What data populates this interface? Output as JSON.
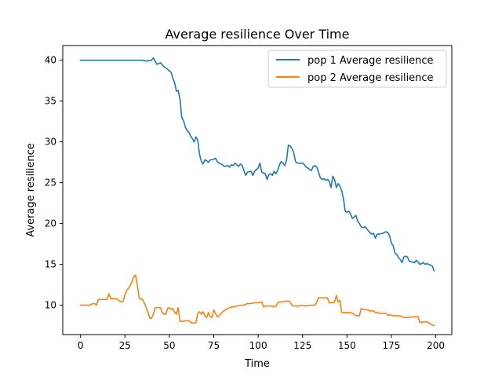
{
  "chart_data": {
    "type": "line",
    "title": "Average resilience Over Time",
    "xlabel": "Time",
    "ylabel": "Average resilience",
    "xlim": [
      -10,
      209
    ],
    "ylim": [
      6.4,
      41.8
    ],
    "xticks": [
      0,
      25,
      50,
      75,
      100,
      125,
      150,
      175,
      200
    ],
    "yticks": [
      10,
      15,
      20,
      25,
      30,
      35,
      40
    ],
    "grid": false,
    "legend_position": "top-right",
    "colors": {
      "pop1": "#1f77b4",
      "pop2": "#ff7f0e"
    },
    "series": [
      {
        "name": "pop 1 Average resilience",
        "points": [
          [
            0,
            40
          ],
          [
            35,
            40
          ],
          [
            37,
            39.9
          ],
          [
            40,
            40
          ],
          [
            41,
            40.3
          ],
          [
            43,
            39.5
          ],
          [
            45,
            39.7
          ],
          [
            47,
            39.2
          ],
          [
            49,
            38.9
          ],
          [
            51,
            38.5
          ],
          [
            52,
            37.8
          ],
          [
            53,
            37.2
          ],
          [
            54,
            36.2
          ],
          [
            55,
            36.3
          ],
          [
            56,
            35.2
          ],
          [
            57,
            33
          ],
          [
            58,
            32.6
          ],
          [
            59,
            31.8
          ],
          [
            60,
            31.4
          ],
          [
            61,
            31.2
          ],
          [
            62,
            30.7
          ],
          [
            63,
            30.4
          ],
          [
            64,
            30
          ],
          [
            65,
            30.6
          ],
          [
            66,
            30.2
          ],
          [
            67,
            28.5
          ],
          [
            68,
            27.6
          ],
          [
            69,
            27.3
          ],
          [
            70,
            27.8
          ],
          [
            71,
            27.7
          ],
          [
            72,
            27.5
          ],
          [
            73,
            27.8
          ],
          [
            74,
            27.8
          ],
          [
            75,
            27.9
          ],
          [
            76,
            28
          ],
          [
            77,
            27.6
          ],
          [
            78,
            27.4
          ],
          [
            80,
            27.2
          ],
          [
            81,
            27
          ],
          [
            83,
            27.1
          ],
          [
            84,
            26.9
          ],
          [
            85,
            27.2
          ],
          [
            86,
            27.1
          ],
          [
            87,
            27.4
          ],
          [
            88,
            27.2
          ],
          [
            89,
            27
          ],
          [
            90,
            27.3
          ],
          [
            91,
            27.1
          ],
          [
            92,
            26.5
          ],
          [
            93,
            25.9
          ],
          [
            94,
            26.3
          ],
          [
            96,
            26.4
          ],
          [
            97,
            25.9
          ],
          [
            98,
            26.4
          ],
          [
            99,
            26.6
          ],
          [
            100,
            26.8
          ],
          [
            101,
            27.4
          ],
          [
            102,
            26.3
          ],
          [
            103,
            26.2
          ],
          [
            104,
            26.1
          ],
          [
            105,
            25.4
          ],
          [
            106,
            26
          ],
          [
            107,
            26.1
          ],
          [
            108,
            25.9
          ],
          [
            109,
            26.4
          ],
          [
            110,
            26.1
          ],
          [
            111,
            26.5
          ],
          [
            112,
            27.2
          ],
          [
            113,
            27.6
          ],
          [
            114,
            27.4
          ],
          [
            115,
            27.1
          ],
          [
            116,
            27.8
          ],
          [
            117,
            29.6
          ],
          [
            118,
            29.5
          ],
          [
            119,
            29.2
          ],
          [
            120,
            28.7
          ],
          [
            121,
            27.6
          ],
          [
            122,
            27.4
          ],
          [
            125,
            27.4
          ],
          [
            126,
            27.2
          ],
          [
            127,
            26.9
          ],
          [
            128,
            26.8
          ],
          [
            129,
            26.6
          ],
          [
            130,
            26.5
          ],
          [
            131,
            27
          ],
          [
            132,
            27.1
          ],
          [
            133,
            26.9
          ],
          [
            134,
            26.3
          ],
          [
            135,
            25.6
          ],
          [
            136,
            25.4
          ],
          [
            137,
            25.5
          ],
          [
            138,
            25.3
          ],
          [
            139,
            25.4
          ],
          [
            140,
            25.2
          ],
          [
            141,
            24.4
          ],
          [
            142,
            25.8
          ],
          [
            143,
            25.4
          ],
          [
            144,
            24.4
          ],
          [
            145,
            24.9
          ],
          [
            146,
            24.6
          ],
          [
            147,
            24
          ],
          [
            148,
            23.1
          ],
          [
            149,
            21.5
          ],
          [
            150,
            21.4
          ],
          [
            151,
            21.5
          ],
          [
            152,
            21.2
          ],
          [
            153,
            20.6
          ],
          [
            154,
            20.8
          ],
          [
            155,
            21
          ],
          [
            156,
            20.3
          ],
          [
            157,
            20
          ],
          [
            158,
            19.6
          ],
          [
            159,
            19.5
          ],
          [
            160,
            19.6
          ],
          [
            161,
            19.4
          ],
          [
            162,
            19.1
          ],
          [
            163,
            18.9
          ],
          [
            164,
            18.7
          ],
          [
            165,
            18.8
          ],
          [
            166,
            18.2
          ],
          [
            167,
            18.7
          ],
          [
            168,
            18.7
          ],
          [
            170,
            18.8
          ],
          [
            171,
            18.9
          ],
          [
            172,
            19
          ],
          [
            173,
            18.9
          ],
          [
            174,
            18.5
          ],
          [
            175,
            17.6
          ],
          [
            176,
            17.3
          ],
          [
            177,
            16.4
          ],
          [
            178,
            16.2
          ],
          [
            179,
            15.8
          ],
          [
            180,
            15.6
          ],
          [
            181,
            15.2
          ],
          [
            182,
            15.9
          ],
          [
            183,
            16
          ],
          [
            184,
            15.9
          ],
          [
            185,
            15.4
          ],
          [
            186,
            15.3
          ],
          [
            187,
            15.3
          ],
          [
            188,
            15.2
          ],
          [
            189,
            15.5
          ],
          [
            190,
            15.3
          ],
          [
            191,
            15
          ],
          [
            192,
            15.1
          ],
          [
            193,
            15.2
          ],
          [
            194,
            15
          ],
          [
            195,
            15.1
          ],
          [
            196,
            15
          ],
          [
            197,
            14.9
          ],
          [
            198,
            14.8
          ],
          [
            199,
            14.2
          ]
        ]
      },
      {
        "name": "pop 2 Average resilience",
        "points": [
          [
            0,
            10
          ],
          [
            5,
            10
          ],
          [
            6,
            10.1
          ],
          [
            7,
            10.2
          ],
          [
            8,
            10.2
          ],
          [
            9,
            10
          ],
          [
            10,
            10.7
          ],
          [
            15,
            10.7
          ],
          [
            16,
            11.4
          ],
          [
            17,
            10.8
          ],
          [
            20,
            10.8
          ],
          [
            21,
            10.7
          ],
          [
            22,
            10.5
          ],
          [
            23,
            10.4
          ],
          [
            24,
            10.5
          ],
          [
            25,
            11.3
          ],
          [
            26,
            11.8
          ],
          [
            27,
            12.1
          ],
          [
            28,
            12.4
          ],
          [
            29,
            12.9
          ],
          [
            30,
            13.5
          ],
          [
            31,
            13.7
          ],
          [
            32,
            12.5
          ],
          [
            33,
            10.9
          ],
          [
            34,
            10.7
          ],
          [
            35,
            10.7
          ],
          [
            36,
            10.2
          ],
          [
            37,
            9.7
          ],
          [
            38,
            9.1
          ],
          [
            39,
            8.4
          ],
          [
            40,
            8.4
          ],
          [
            41,
            8.9
          ],
          [
            42,
            9.7
          ],
          [
            45,
            9.7
          ],
          [
            46,
            9.1
          ],
          [
            47,
            8.9
          ],
          [
            48,
            8.9
          ],
          [
            49,
            9.6
          ],
          [
            50,
            9.7
          ],
          [
            51,
            9.5
          ],
          [
            52,
            9.6
          ],
          [
            53,
            9.1
          ],
          [
            54,
            8.9
          ],
          [
            55,
            9.7
          ],
          [
            56,
            8
          ],
          [
            60,
            8.1
          ],
          [
            61,
            8.1
          ],
          [
            62,
            7.9
          ],
          [
            63,
            7.8
          ],
          [
            64,
            7.8
          ],
          [
            65,
            7.9
          ],
          [
            66,
            9
          ],
          [
            67,
            9.2
          ],
          [
            68,
            8.9
          ],
          [
            69,
            9.2
          ],
          [
            70,
            8.7
          ],
          [
            71,
            8.5
          ],
          [
            72,
            9.1
          ],
          [
            73,
            8.6
          ],
          [
            74,
            8.5
          ],
          [
            75,
            9.4
          ],
          [
            76,
            9
          ],
          [
            77,
            8.6
          ],
          [
            78,
            8.7
          ],
          [
            80,
            9.2
          ],
          [
            82,
            9.5
          ],
          [
            84,
            9.7
          ],
          [
            86,
            9.8
          ],
          [
            88,
            9.9
          ],
          [
            90,
            10
          ],
          [
            92,
            10
          ],
          [
            94,
            10.2
          ],
          [
            96,
            10.2
          ],
          [
            98,
            10.3
          ],
          [
            100,
            10.3
          ],
          [
            102,
            10.4
          ],
          [
            103,
            9.8
          ],
          [
            104,
            9.9
          ],
          [
            108,
            9.9
          ],
          [
            109,
            9.8
          ],
          [
            110,
            9.9
          ],
          [
            111,
            10.3
          ],
          [
            112,
            10.4
          ],
          [
            114,
            10.4
          ],
          [
            115,
            10.5
          ],
          [
            117,
            10.5
          ],
          [
            118,
            10.4
          ],
          [
            119,
            10
          ],
          [
            120,
            9.9
          ],
          [
            123,
            9.9
          ],
          [
            124,
            10
          ],
          [
            125,
            10
          ],
          [
            126,
            9.9
          ],
          [
            130,
            10
          ],
          [
            131,
            10
          ],
          [
            132,
            10
          ],
          [
            133,
            10.4
          ],
          [
            134,
            10.9
          ],
          [
            139,
            10.9
          ],
          [
            140,
            10.3
          ],
          [
            142,
            10.3
          ],
          [
            143,
            10.4
          ],
          [
            144,
            11.2
          ],
          [
            145,
            10.4
          ],
          [
            146,
            10.6
          ],
          [
            147,
            9.1
          ],
          [
            152,
            9.1
          ],
          [
            153,
            9
          ],
          [
            154,
            8.9
          ],
          [
            155,
            8.7
          ],
          [
            156,
            8.7
          ],
          [
            157,
            8.7
          ],
          [
            158,
            9.6
          ],
          [
            159,
            9.5
          ],
          [
            162,
            9.4
          ],
          [
            163,
            9.3
          ],
          [
            165,
            9.3
          ],
          [
            166,
            9.1
          ],
          [
            167,
            9.1
          ],
          [
            168,
            9
          ],
          [
            172,
            9
          ],
          [
            173,
            8.8
          ],
          [
            174,
            8.8
          ],
          [
            175,
            8.8
          ],
          [
            176,
            8.7
          ],
          [
            180,
            8.7
          ],
          [
            181,
            8.6
          ],
          [
            182,
            8.5
          ],
          [
            183,
            8.5
          ],
          [
            190,
            8.6
          ],
          [
            191,
            7.9
          ],
          [
            195,
            8
          ],
          [
            196,
            7.8
          ],
          [
            197,
            7.7
          ],
          [
            198,
            7.6
          ],
          [
            199,
            7.5
          ]
        ]
      }
    ]
  }
}
